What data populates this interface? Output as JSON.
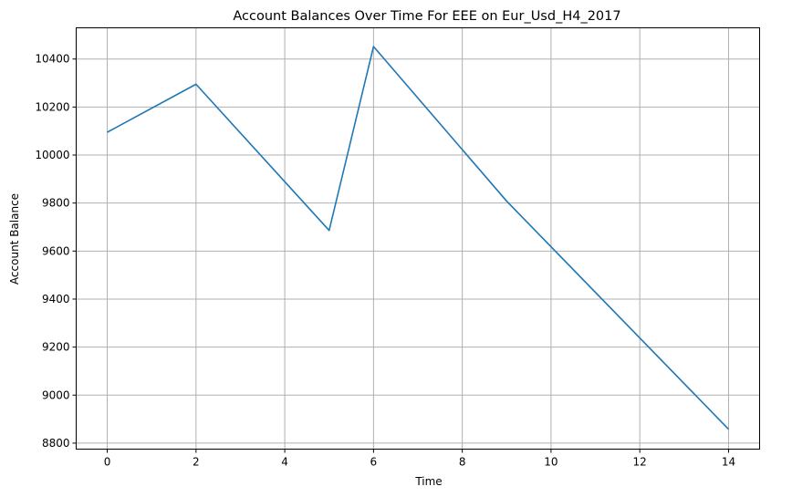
{
  "chart_data": {
    "type": "line",
    "title": "Account Balances Over Time For EEE on Eur_Usd_H4_2017",
    "xlabel": "Time",
    "ylabel": "Account Balance",
    "xlim": [
      -0.7,
      14.7
    ],
    "ylim": [
      8775,
      10530
    ],
    "xticks": [
      0,
      2,
      4,
      6,
      8,
      10,
      12,
      14
    ],
    "yticks": [
      8800,
      9000,
      9200,
      9400,
      9600,
      9800,
      10000,
      10200,
      10400
    ],
    "grid": true,
    "line_color": "#1f77b4",
    "series": [
      {
        "x": [
          0,
          2,
          5,
          6,
          9,
          14
        ],
        "y": [
          10095,
          10295,
          9686,
          10452,
          9808,
          8858
        ]
      }
    ]
  }
}
